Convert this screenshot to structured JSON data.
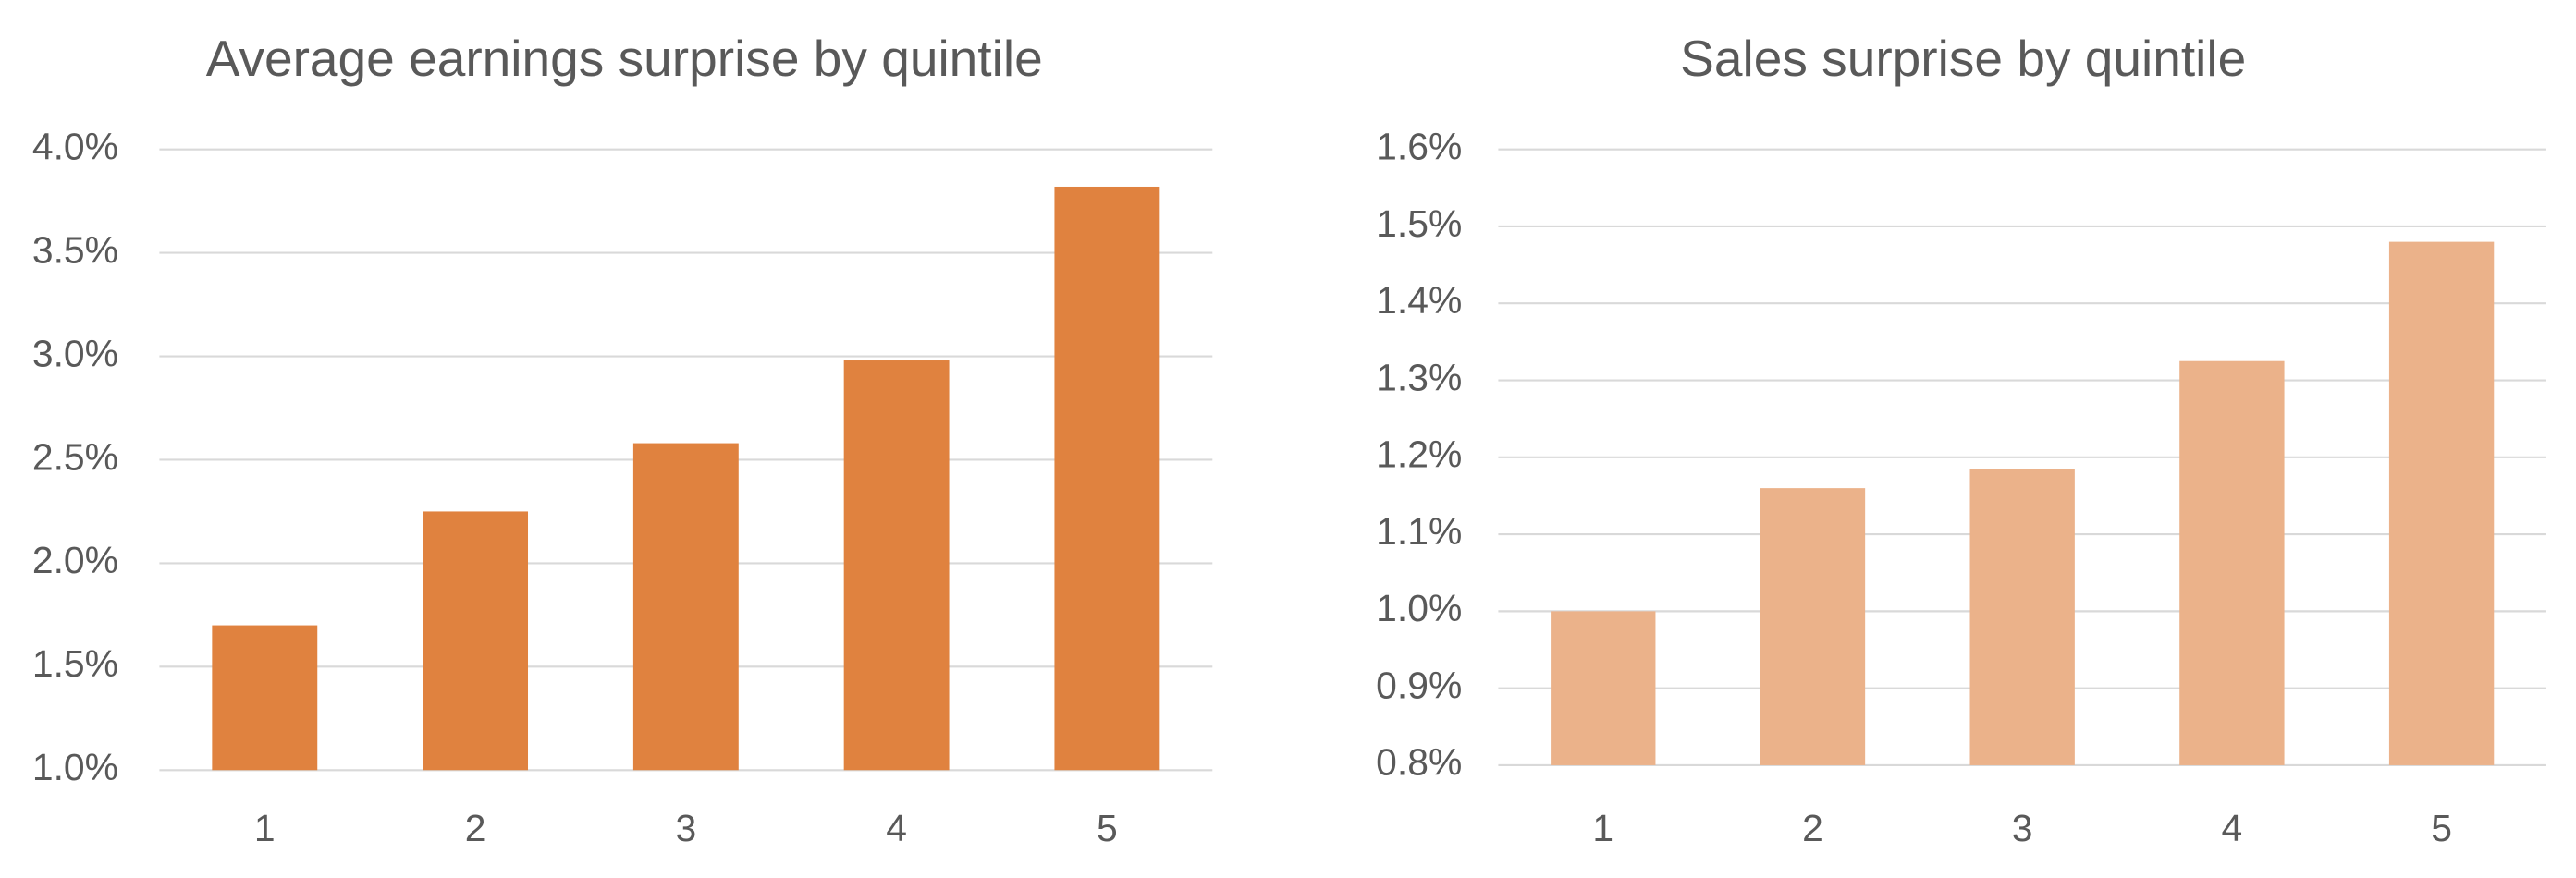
{
  "chart_data": [
    {
      "type": "bar",
      "title": "Average earnings surprise by quintile",
      "categories": [
        "1",
        "2",
        "3",
        "4",
        "5"
      ],
      "values": [
        1.7,
        2.25,
        2.58,
        2.98,
        3.82
      ],
      "color": "#e0823f",
      "ylim": [
        1.0,
        4.0
      ],
      "yticks": [
        {
          "value": 1.0,
          "label": "1.0%"
        },
        {
          "value": 1.5,
          "label": "1.5%"
        },
        {
          "value": 2.0,
          "label": "2.0%"
        },
        {
          "value": 2.5,
          "label": "2.5%"
        },
        {
          "value": 3.0,
          "label": "3.0%"
        },
        {
          "value": 3.5,
          "label": "3.5%"
        },
        {
          "value": 4.0,
          "label": "4.0%"
        }
      ],
      "grid": true
    },
    {
      "type": "bar",
      "title": "Sales surprise by quintile",
      "categories": [
        "1",
        "2",
        "3",
        "4",
        "5"
      ],
      "values": [
        1.0,
        1.16,
        1.185,
        1.325,
        1.48
      ],
      "color": "#ebb28a",
      "ylim": [
        0.8,
        1.6
      ],
      "yticks": [
        {
          "value": 0.8,
          "label": "0.8%"
        },
        {
          "value": 0.9,
          "label": "0.9%"
        },
        {
          "value": 1.0,
          "label": "1.0%"
        },
        {
          "value": 1.1,
          "label": "1.1%"
        },
        {
          "value": 1.2,
          "label": "1.2%"
        },
        {
          "value": 1.3,
          "label": "1.3%"
        },
        {
          "value": 1.4,
          "label": "1.4%"
        },
        {
          "value": 1.5,
          "label": "1.5%"
        },
        {
          "value": 1.6,
          "label": "1.6%"
        }
      ],
      "grid": true
    }
  ]
}
